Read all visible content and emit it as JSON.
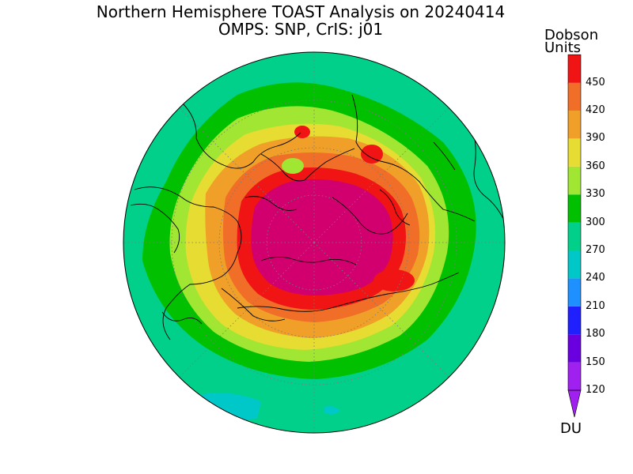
{
  "title": {
    "line1": "Northern Hemisphere TOAST Analysis on 20240414",
    "line2": "OMPS: SNP, CrIS: j01"
  },
  "colorbar": {
    "header_line1": "Dobson",
    "header_line2": "Units",
    "unit_label": "DU",
    "levels": [
      {
        "value": "120",
        "color": "#a020f0"
      },
      {
        "value": "150",
        "color": "#6a00e0"
      },
      {
        "value": "180",
        "color": "#2020ff"
      },
      {
        "value": "210",
        "color": "#1e90ff"
      },
      {
        "value": "240",
        "color": "#00c8c8"
      },
      {
        "value": "270",
        "color": "#00d08a"
      },
      {
        "value": "300",
        "color": "#00c000"
      },
      {
        "value": "330",
        "color": "#a0e632"
      },
      {
        "value": "360",
        "color": "#e6dc32"
      },
      {
        "value": "390",
        "color": "#f0a028"
      },
      {
        "value": "420",
        "color": "#f06e28"
      },
      {
        "value": "450",
        "color": "#f01414"
      }
    ],
    "top_color": "#d2006e",
    "bottom_color": "#a020f0"
  },
  "map": {
    "background_color": "#00d08a"
  }
}
